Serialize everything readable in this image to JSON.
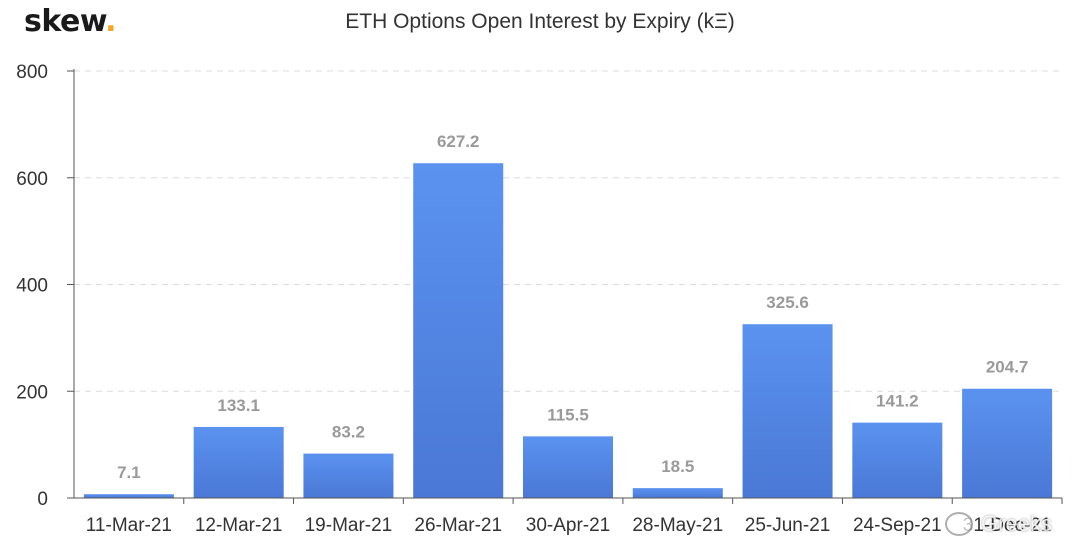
{
  "brand": {
    "name": "skew",
    "dot": "."
  },
  "watermark": {
    "text": "Greeks"
  },
  "colors": {
    "bar_top": "#5b92f0",
    "bar_bottom": "#4a78d6",
    "axis": "#555555",
    "grid": "#dddddd",
    "value_label": "#9a9a9a"
  },
  "chart_data": {
    "type": "bar",
    "title": "ETH Options Open Interest by Expiry (kΞ)",
    "xlabel": "",
    "ylabel": "",
    "categories": [
      "11-Mar-21",
      "12-Mar-21",
      "19-Mar-21",
      "26-Mar-21",
      "30-Apr-21",
      "28-May-21",
      "25-Jun-21",
      "24-Sep-21",
      "31-Dec-21"
    ],
    "values": [
      7.1,
      133.1,
      83.2,
      627.2,
      115.5,
      18.5,
      325.6,
      141.2,
      204.7
    ],
    "value_labels": [
      "7.1",
      "133.1",
      "83.2",
      "627.2",
      "115.5",
      "18.5",
      "325.6",
      "141.2",
      "204.7"
    ],
    "ylim": [
      0,
      800
    ],
    "yticks": [
      0,
      200,
      400,
      600,
      800
    ],
    "grid": true,
    "legend": "none"
  }
}
